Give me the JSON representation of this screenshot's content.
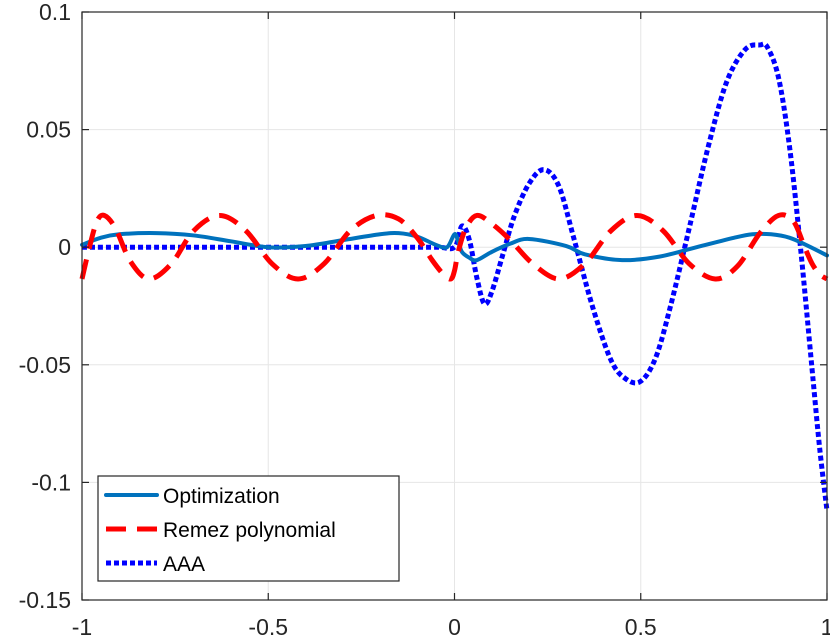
{
  "chart_data": {
    "type": "line",
    "title": "",
    "xlabel": "",
    "ylabel": "",
    "xlim": [
      -1,
      1
    ],
    "ylim": [
      -0.15,
      0.1
    ],
    "grid": true,
    "x_ticks": [
      -1,
      -0.5,
      0,
      0.5,
      1
    ],
    "x_tick_labels": [
      "-1",
      "-0.5",
      "0",
      "0.5",
      "1"
    ],
    "y_ticks": [
      -0.15,
      -0.1,
      -0.05,
      0,
      0.05,
      0.1
    ],
    "y_tick_labels": [
      "-0.15",
      "-0.1",
      "-0.05",
      "0",
      "0.05",
      "0.1"
    ],
    "legend_position": "bottom-left",
    "series": [
      {
        "name": "Optimization",
        "color": "#0072BD",
        "style": "solid",
        "x": [
          -1,
          -0.95,
          -0.9,
          -0.8,
          -0.7,
          -0.6,
          -0.5,
          -0.4,
          -0.3,
          -0.2,
          -0.15,
          -0.1,
          -0.05,
          -0.02,
          0,
          0.01,
          0.02,
          0.04,
          0.06,
          0.1,
          0.15,
          0.2,
          0.3,
          0.35,
          0.45,
          0.55,
          0.65,
          0.75,
          0.8,
          0.85,
          0.9,
          0.95,
          1
        ],
        "y": [
          0.001,
          0.004,
          0.0055,
          0.006,
          0.005,
          0.0025,
          0.0,
          0.0005,
          0.003,
          0.0055,
          0.006,
          0.0045,
          0.001,
          0.0,
          0.0055,
          0.0025,
          -0.002,
          -0.0045,
          -0.0055,
          -0.002,
          0.0015,
          0.0035,
          0.0005,
          -0.003,
          -0.0055,
          -0.004,
          0.0,
          0.004,
          0.0055,
          0.0055,
          0.004,
          0.0005,
          -0.0035
        ]
      },
      {
        "name": "Remez polynomial",
        "color": "#FF0000",
        "style": "dashed",
        "x": [
          -1,
          -0.98,
          -0.96,
          -0.94,
          -0.91,
          -0.87,
          -0.82,
          -0.76,
          -0.7,
          -0.63,
          -0.56,
          -0.49,
          -0.42,
          -0.35,
          -0.28,
          -0.21,
          -0.15,
          -0.1,
          -0.06,
          -0.03,
          -0.01,
          0,
          0.01,
          0.03,
          0.06,
          0.1,
          0.15,
          0.21,
          0.28,
          0.35,
          0.42,
          0.49,
          0.56,
          0.63,
          0.7,
          0.76,
          0.82,
          0.87,
          0.91,
          0.94,
          0.96,
          0.98,
          1
        ],
        "y": [
          -0.0135,
          0.0,
          0.011,
          0.0135,
          0.008,
          -0.006,
          -0.0135,
          -0.007,
          0.007,
          0.0135,
          0.007,
          -0.007,
          -0.0135,
          -0.007,
          0.007,
          0.0135,
          0.012,
          0.004,
          -0.0055,
          -0.0115,
          -0.0135,
          -0.01,
          -0.002,
          0.008,
          0.0135,
          0.01,
          0.003,
          -0.007,
          -0.0135,
          -0.007,
          0.007,
          0.0135,
          0.007,
          -0.007,
          -0.0135,
          -0.008,
          0.006,
          0.0135,
          0.011,
          0.0,
          -0.007,
          -0.0115,
          -0.0135
        ]
      },
      {
        "name": "AAA",
        "color": "#0000FF",
        "style": "dotted",
        "x": [
          -1,
          -0.8,
          -0.6,
          -0.4,
          -0.2,
          -0.05,
          0,
          0.02,
          0.04,
          0.06,
          0.08,
          0.1,
          0.13,
          0.16,
          0.2,
          0.24,
          0.28,
          0.32,
          0.37,
          0.42,
          0.46,
          0.5,
          0.54,
          0.58,
          0.63,
          0.68,
          0.73,
          0.78,
          0.82,
          0.84,
          0.87,
          0.9,
          0.93,
          0.96,
          0.98,
          1
        ],
        "y": [
          0.0,
          0.0,
          0.0,
          0.0,
          0.0,
          0.0,
          0.0,
          0.009,
          0.003,
          -0.013,
          -0.024,
          -0.019,
          -0.003,
          0.013,
          0.027,
          0.033,
          0.026,
          0.004,
          -0.025,
          -0.048,
          -0.056,
          -0.057,
          -0.047,
          -0.025,
          0.008,
          0.042,
          0.07,
          0.084,
          0.086,
          0.085,
          0.072,
          0.042,
          -0.002,
          -0.052,
          -0.085,
          -0.112
        ]
      }
    ]
  }
}
